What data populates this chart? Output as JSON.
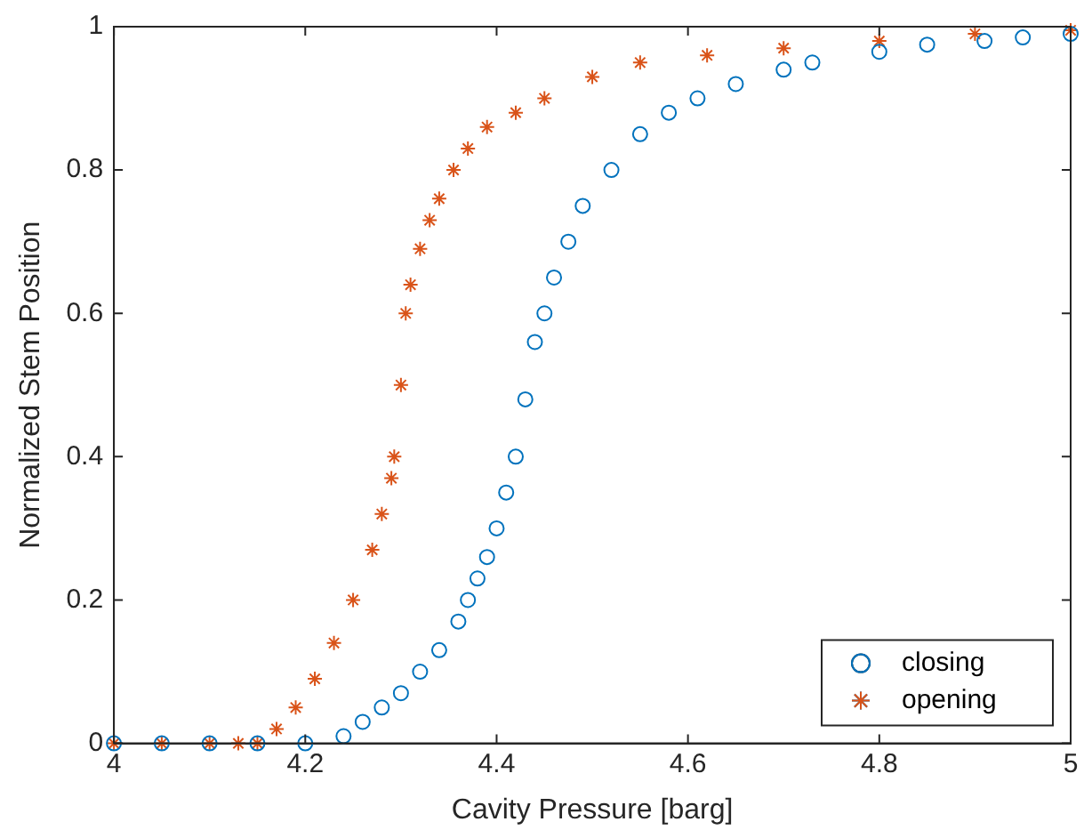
{
  "chart_data": {
    "type": "scatter",
    "xlabel": "Cavity Pressure [barg]",
    "ylabel": "Normalized Stem Position",
    "xlim": [
      4,
      5
    ],
    "xticks": [
      4,
      4.2,
      4.4,
      4.6,
      4.8,
      5
    ],
    "ylim": [
      0,
      1
    ],
    "yticks": [
      0,
      0.2,
      0.4,
      0.6,
      0.8,
      1
    ],
    "grid": false,
    "legend": "bottom right",
    "series": [
      {
        "name": "closing",
        "color": "#0072bd",
        "marker": "circle",
        "x": [
          4,
          4.05,
          4.1,
          4.15,
          4.2,
          4.24,
          4.26,
          4.28,
          4.3,
          4.32,
          4.34,
          4.36,
          4.37,
          4.38,
          4.39,
          4.4,
          4.41,
          4.42,
          4.43,
          4.44,
          4.45,
          4.46,
          4.475,
          4.49,
          4.52,
          4.55,
          4.58,
          4.61,
          4.65,
          4.7,
          4.73,
          4.8,
          4.85,
          4.91,
          4.95,
          5
        ],
        "values": [
          0,
          0,
          0,
          0,
          0,
          0.01,
          0.03,
          0.05,
          0.07,
          0.1,
          0.13,
          0.17,
          0.2,
          0.23,
          0.26,
          0.3,
          0.35,
          0.4,
          0.48,
          0.56,
          0.6,
          0.65,
          0.7,
          0.75,
          0.8,
          0.85,
          0.88,
          0.9,
          0.92,
          0.94,
          0.95,
          0.965,
          0.975,
          0.98,
          0.985,
          0.99
        ]
      },
      {
        "name": "opening",
        "color": "#d95319",
        "marker": "cross",
        "x": [
          4,
          4.05,
          4.1,
          4.13,
          4.15,
          4.17,
          4.19,
          4.21,
          4.23,
          4.25,
          4.27,
          4.28,
          4.29,
          4.293,
          4.3,
          4.305,
          4.31,
          4.32,
          4.33,
          4.34,
          4.355,
          4.37,
          4.39,
          4.42,
          4.45,
          4.5,
          4.55,
          4.62,
          4.7,
          4.8,
          4.9,
          5
        ],
        "values": [
          0,
          0,
          0,
          0,
          0,
          0.02,
          0.05,
          0.09,
          0.14,
          0.2,
          0.27,
          0.32,
          0.37,
          0.4,
          0.5,
          0.6,
          0.64,
          0.69,
          0.73,
          0.76,
          0.8,
          0.83,
          0.86,
          0.88,
          0.9,
          0.93,
          0.95,
          0.96,
          0.97,
          0.98,
          0.99,
          0.995
        ]
      }
    ]
  }
}
